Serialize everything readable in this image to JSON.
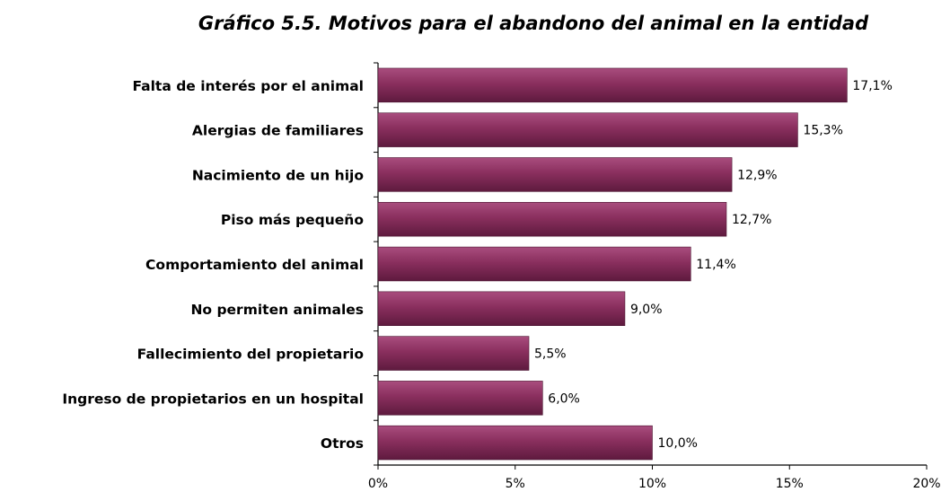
{
  "chart_data": {
    "type": "bar",
    "orientation": "horizontal",
    "title": "Gráfico 5.5. Motivos para el abandono del animal en la entidad",
    "categories": [
      "Falta de interés por el animal",
      "Alergias de familiares",
      "Nacimiento de un hijo",
      "Piso más pequeño",
      "Comportamiento del animal",
      "No permiten animales",
      "Fallecimiento del propietario",
      "Ingreso de propietarios en un hospital",
      "Otros"
    ],
    "values": [
      17.1,
      15.3,
      12.9,
      12.7,
      11.4,
      9.0,
      5.5,
      6.0,
      10.0
    ],
    "value_labels": [
      "17,1%",
      "15,3%",
      "12,9%",
      "12,7%",
      "11,4%",
      "9,0%",
      "5,5%",
      "6,0%",
      "10,0%"
    ],
    "xlim": [
      0,
      20
    ],
    "xticks": [
      0,
      5,
      10,
      15,
      20
    ],
    "xtick_labels": [
      "0%",
      "5%",
      "10%",
      "15%",
      "20%"
    ],
    "xlabel": "",
    "ylabel": "",
    "grid": false,
    "legend": "none",
    "bar_color": "#8a2f5e"
  }
}
